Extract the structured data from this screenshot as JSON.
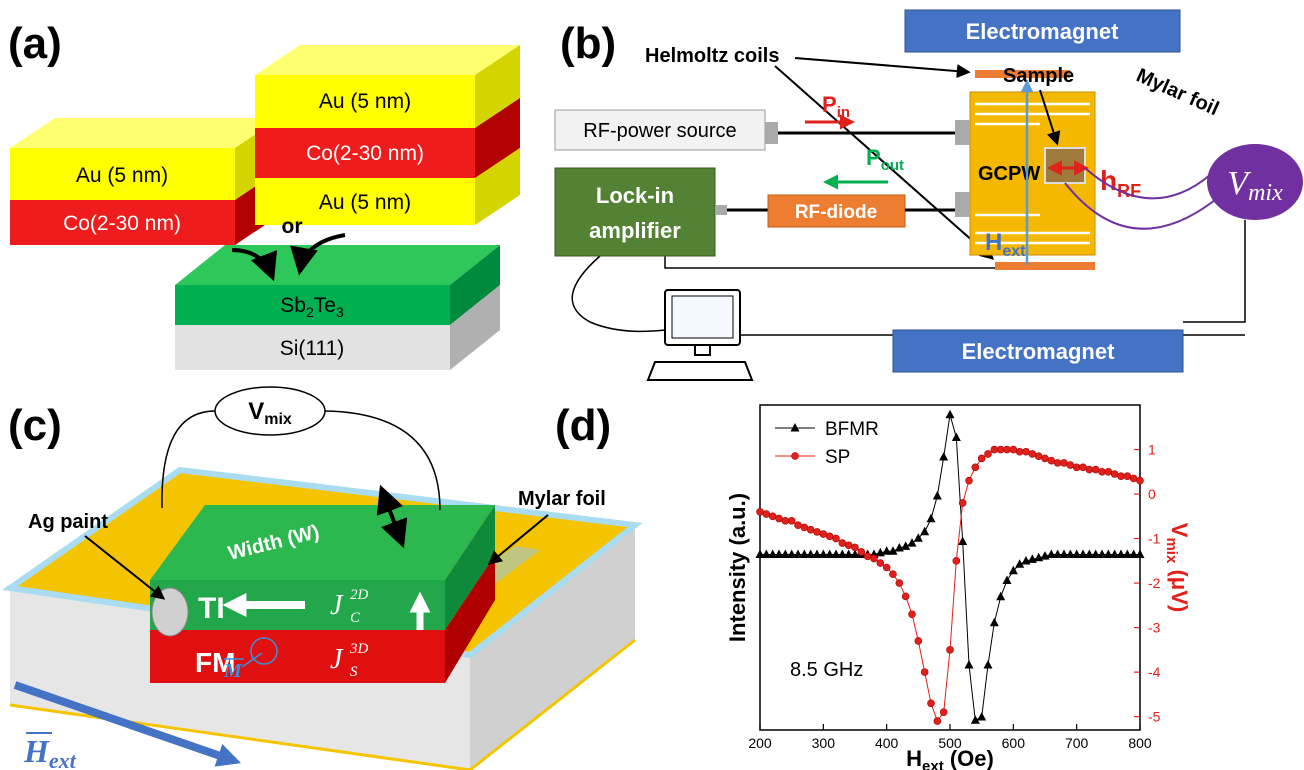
{
  "panel_labels": [
    "(a)",
    "(b)",
    "(c)",
    "(d)"
  ],
  "panel_a": {
    "stack_left": [
      "Au (5 nm)",
      "Co(2-30 nm)"
    ],
    "stack_right": [
      "Au (5 nm)",
      "Co(2-30 nm)",
      "Au (5 nm)"
    ],
    "connector": "or",
    "substrate_top": [
      "Sb",
      "2",
      "Te",
      "3"
    ],
    "substrate_bottom": "Si(111)"
  },
  "panel_b": {
    "electromagnet_top": "Electromagnet",
    "electromagnet_bottom": "Electromagnet",
    "coils": "Helmoltz coils",
    "rf_source": "RF-power source",
    "lock_in": [
      "Lock-in",
      "amplifier"
    ],
    "rf_diode": "RF-diode",
    "p_in": [
      "P",
      "in"
    ],
    "p_out": [
      "P",
      "out"
    ],
    "sample": "Sample",
    "mylar": "Mylar foil",
    "gcpw": "GCPW",
    "h_rf": [
      "h",
      "RF"
    ],
    "h_ext": [
      "H",
      "ext"
    ],
    "v_mix": [
      "V",
      "mix"
    ]
  },
  "panel_c": {
    "v_mix": [
      "V",
      "mix"
    ],
    "ag_paint": "Ag paint",
    "mylar": "Mylar foil",
    "width": "Width (W)",
    "ti": "TI",
    "fm": "FM",
    "j_c": [
      "J",
      "C",
      "2D"
    ],
    "j_s": [
      "J",
      "S",
      "3D"
    ],
    "magnetization": "M",
    "h_ext": [
      "H",
      "ext"
    ]
  },
  "chart_data": {
    "type": "line",
    "xlabel": [
      "H",
      "ext",
      " (Oe)"
    ],
    "ylabel": "Intensity (a.u.)",
    "y2label": [
      "V",
      "mix",
      " (μV)"
    ],
    "annotation": "8.5 GHz",
    "xlim": [
      200,
      800
    ],
    "xticks": [
      200,
      300,
      400,
      500,
      600,
      700,
      800
    ],
    "ylim": [
      0,
      1
    ],
    "y2lim": [
      -5.3,
      2.0
    ],
    "y2ticks": [
      -5,
      -4,
      -3,
      -2,
      -1,
      0,
      1
    ],
    "x": [
      200,
      210,
      220,
      230,
      240,
      250,
      260,
      270,
      280,
      290,
      300,
      310,
      320,
      330,
      340,
      350,
      360,
      370,
      380,
      390,
      400,
      410,
      420,
      430,
      440,
      450,
      460,
      470,
      480,
      490,
      500,
      510,
      520,
      530,
      540,
      550,
      560,
      570,
      580,
      590,
      600,
      610,
      620,
      630,
      640,
      650,
      660,
      670,
      680,
      690,
      700,
      710,
      720,
      730,
      740,
      750,
      760,
      770,
      780,
      790,
      800
    ],
    "series": [
      {
        "name": "BFMR",
        "color": "#000000",
        "marker": "triangle",
        "values": [
          0.54,
          0.54,
          0.54,
          0.54,
          0.54,
          0.54,
          0.54,
          0.54,
          0.54,
          0.54,
          0.54,
          0.54,
          0.54,
          0.54,
          0.54,
          0.54,
          0.54,
          0.54,
          0.54,
          0.545,
          0.55,
          0.55,
          0.56,
          0.565,
          0.575,
          0.59,
          0.61,
          0.65,
          0.72,
          0.84,
          0.97,
          0.9,
          0.58,
          0.2,
          0.03,
          0.04,
          0.2,
          0.33,
          0.41,
          0.46,
          0.49,
          0.51,
          0.52,
          0.525,
          0.53,
          0.535,
          0.54,
          0.54,
          0.54,
          0.54,
          0.54,
          0.54,
          0.54,
          0.54,
          0.54,
          0.54,
          0.54,
          0.54,
          0.54,
          0.54,
          0.54
        ]
      },
      {
        "name": "SP",
        "color": "#e0201b",
        "marker": "circle",
        "axis": "y2",
        "values": [
          -0.4,
          -0.45,
          -0.5,
          -0.55,
          -0.6,
          -0.6,
          -0.7,
          -0.75,
          -0.8,
          -0.85,
          -0.9,
          -0.95,
          -1.0,
          -1.1,
          -1.15,
          -1.2,
          -1.3,
          -1.4,
          -1.45,
          -1.55,
          -1.65,
          -1.8,
          -2.0,
          -2.3,
          -2.7,
          -3.3,
          -4.0,
          -4.7,
          -5.1,
          -4.9,
          -3.5,
          -1.5,
          -0.2,
          0.3,
          0.6,
          0.8,
          0.9,
          1.0,
          1.0,
          1.0,
          1.0,
          0.95,
          0.95,
          0.9,
          0.85,
          0.8,
          0.75,
          0.7,
          0.7,
          0.65,
          0.6,
          0.6,
          0.55,
          0.55,
          0.5,
          0.5,
          0.45,
          0.4,
          0.4,
          0.35,
          0.3
        ]
      }
    ]
  }
}
